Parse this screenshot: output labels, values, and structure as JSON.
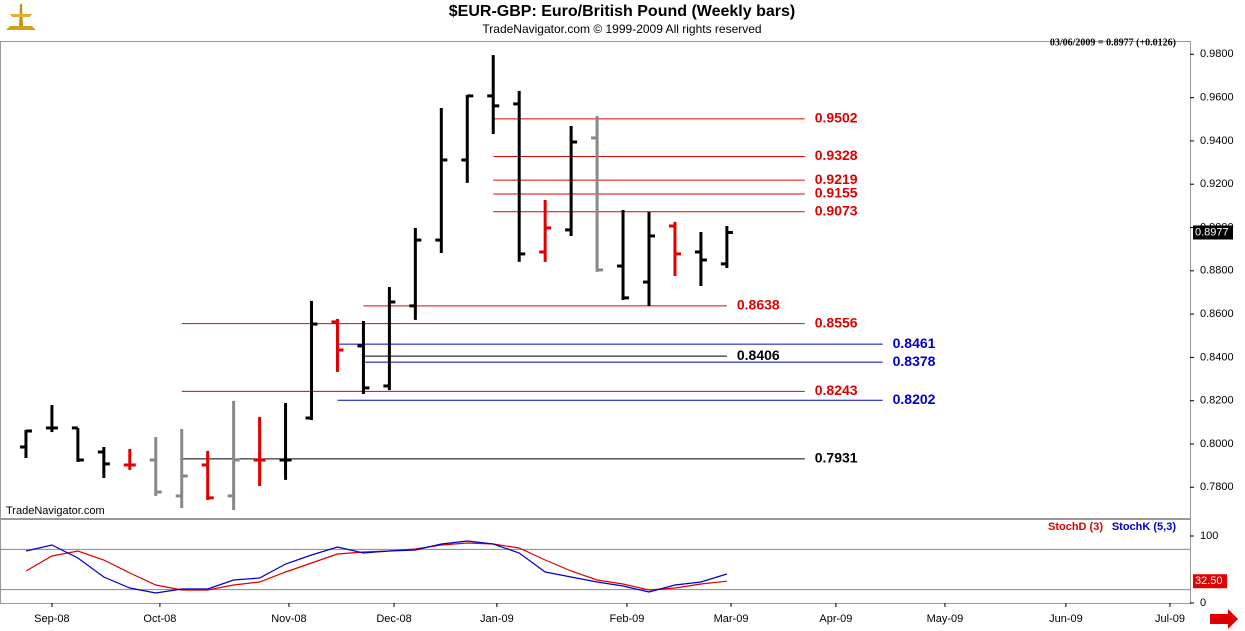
{
  "chart_data": [
    {
      "type": "ohlc",
      "title": "$EUR-GBP:  Euro/British Pound  (Weekly bars)",
      "subtitle": "TradeNavigator.com © 1999-2009 All rights reserved",
      "header": "03/06/2009 = 0.8977 (+0.0126)",
      "watermark": "TradeNavigator.com",
      "x": [
        0,
        1,
        2,
        3,
        4,
        5,
        6,
        7,
        8,
        9,
        10,
        11,
        12,
        13,
        14,
        15,
        16,
        17,
        18,
        19,
        20,
        21,
        22,
        23,
        24,
        25,
        26,
        27
      ],
      "open": [
        0.7986,
        0.8074,
        0.8074,
        0.7963,
        0.7903,
        0.7926,
        0.776,
        0.7903,
        0.776,
        0.7926,
        0.7926,
        0.812,
        0.8564,
        0.8453,
        0.8268,
        0.8638,
        0.8942,
        0.9312,
        0.9608,
        0.9571,
        0.8887,
        0.8989,
        0.9414,
        0.8822,
        0.8748,
        0.9007,
        0.8887,
        0.8832
      ],
      "high": [
        0.8065,
        0.818,
        0.8074,
        0.7986,
        0.7977,
        0.8032,
        0.8069,
        0.7968,
        0.8199,
        0.8125,
        0.8189,
        0.8661,
        0.8578,
        0.8568,
        0.8725,
        0.8998,
        0.9552,
        0.9612,
        0.9797,
        0.9631,
        0.9127,
        0.9469,
        0.9515,
        0.9081,
        0.9072,
        0.9026,
        0.8979,
        0.9007
      ],
      "low": [
        0.7935,
        0.8055,
        0.7917,
        0.7843,
        0.788,
        0.776,
        0.7704,
        0.7741,
        0.7695,
        0.7806,
        0.7834,
        0.8111,
        0.8333,
        0.8231,
        0.8249,
        0.8573,
        0.8882,
        0.9206,
        0.9432,
        0.8841,
        0.8841,
        0.8961,
        0.8795,
        0.8665,
        0.8638,
        0.8776,
        0.873,
        0.8813
      ],
      "close": [
        0.806,
        0.8074,
        0.7926,
        0.7908,
        0.7903,
        0.7778,
        0.7852,
        0.7751,
        0.7926,
        0.7926,
        0.7926,
        0.8554,
        0.8434,
        0.8259,
        0.8656,
        0.8942,
        0.9312,
        0.9608,
        0.9562,
        0.8878,
        0.8998,
        0.9395,
        0.8804,
        0.8675,
        0.8961,
        0.8878,
        0.885,
        0.8977
      ],
      "colors": [
        "#000000",
        "#000000",
        "#000000",
        "#000000",
        "#e00000",
        "#888888",
        "#888888",
        "#e00000",
        "#888888",
        "#e00000",
        "#000000",
        "#000000",
        "#e00000",
        "#000000",
        "#000000",
        "#000000",
        "#000000",
        "#000000",
        "#000000",
        "#000000",
        "#e00000",
        "#000000",
        "#888888",
        "#000000",
        "#000000",
        "#e00000",
        "#000000",
        "#000000"
      ],
      "last_price": 0.8977,
      "levels": [
        {
          "value": 0.9502,
          "color": "#e00000",
          "from": 18,
          "to": 30
        },
        {
          "value": 0.9328,
          "color": "#e00000",
          "from": 18,
          "to": 30
        },
        {
          "value": 0.9219,
          "color": "#e00000",
          "from": 18,
          "to": 30
        },
        {
          "value": 0.9155,
          "color": "#e00000",
          "from": 18,
          "to": 30
        },
        {
          "value": 0.9073,
          "color": "#e00000",
          "from": 18,
          "to": 30
        },
        {
          "value": 0.8638,
          "color": "#e00000",
          "from": 13,
          "to": 27
        },
        {
          "value": 0.8556,
          "color": "#e00000",
          "from": 6,
          "to": 30
        },
        {
          "value": 0.8461,
          "color": "#0000cc",
          "from": 12,
          "to": 33
        },
        {
          "value": 0.8406,
          "color": "#000000",
          "from": 13,
          "to": 27
        },
        {
          "value": 0.8378,
          "color": "#0000cc",
          "from": 13,
          "to": 33
        },
        {
          "value": 0.8243,
          "color": "#e00000",
          "from": 6,
          "to": 30
        },
        {
          "value": 0.8202,
          "color": "#0000cc",
          "from": 12,
          "to": 33
        },
        {
          "value": 0.7931,
          "color": "#000000",
          "from": 6,
          "to": 30
        }
      ],
      "xlim": [
        -1,
        44.84
      ],
      "ylim": [
        0.7658,
        0.9857
      ],
      "yticks": [
        {
          "value": 0.78,
          "label": "0.7800"
        },
        {
          "value": 0.8,
          "label": "0.8000"
        },
        {
          "value": 0.82,
          "label": "0.8200"
        },
        {
          "value": 0.84,
          "label": "0.8400"
        },
        {
          "value": 0.86,
          "label": "0.8600"
        },
        {
          "value": 0.88,
          "label": "0.8800"
        },
        {
          "value": 0.9,
          "label": "0.9000"
        },
        {
          "value": 0.92,
          "label": "0.9200"
        },
        {
          "value": 0.94,
          "label": "0.9400"
        },
        {
          "value": 0.96,
          "label": "0.9600"
        },
        {
          "value": 0.98,
          "label": "0.9800"
        }
      ]
    },
    {
      "type": "line",
      "x": [
        0,
        1,
        2,
        3,
        4,
        5,
        6,
        7,
        8,
        9,
        10,
        11,
        12,
        13,
        14,
        15,
        16,
        17,
        18,
        19,
        20,
        21,
        22,
        23,
        24,
        25,
        26,
        27
      ],
      "series": [
        {
          "name": "StochD (3)",
          "color": "#e00000",
          "values": [
            47.8,
            70.1,
            77.6,
            64.2,
            44.8,
            26.9,
            19.4,
            19.4,
            26.9,
            31.3,
            46.3,
            59.7,
            73.1,
            76.1,
            77.6,
            80.6,
            86.6,
            89.6,
            88.1,
            82.1,
            64.2,
            47.8,
            34.3,
            28.4,
            19.4,
            22.4,
            28.4,
            32.5
          ],
          "last_label": "32.50"
        },
        {
          "name": "StochK (5,3)",
          "color": "#0000cc",
          "values": [
            77.6,
            86.6,
            67.2,
            38.8,
            22.4,
            14.9,
            20.9,
            20.9,
            34.3,
            37.3,
            58.2,
            71.6,
            83.6,
            74.6,
            77.6,
            79.1,
            88.1,
            92.5,
            88.1,
            74.6,
            46.3,
            38.8,
            31.3,
            25.4,
            16.4,
            26.9,
            31.3,
            43.3
          ]
        }
      ],
      "levels": [
        20,
        80
      ],
      "xlim": [
        -1,
        44.84
      ],
      "ylim": [
        0,
        123.9
      ],
      "yticks": [
        0,
        100
      ],
      "xticks": [
        {
          "value": 1.0,
          "label": "Sep-08"
        },
        {
          "value": 5.16,
          "label": "Oct-08"
        },
        {
          "value": 10.13,
          "label": "Nov-08"
        },
        {
          "value": 14.18,
          "label": "Dec-08"
        },
        {
          "value": 18.14,
          "label": "Jan-09"
        },
        {
          "value": 23.15,
          "label": "Feb-09"
        },
        {
          "value": 27.16,
          "label": "Mar-09"
        },
        {
          "value": 31.2,
          "label": "Apr-09"
        },
        {
          "value": 35.4,
          "label": "May-09"
        },
        {
          "value": 40.06,
          "label": "Jun-09"
        },
        {
          "value": 44.07,
          "label": "Jul-09"
        }
      ]
    }
  ]
}
